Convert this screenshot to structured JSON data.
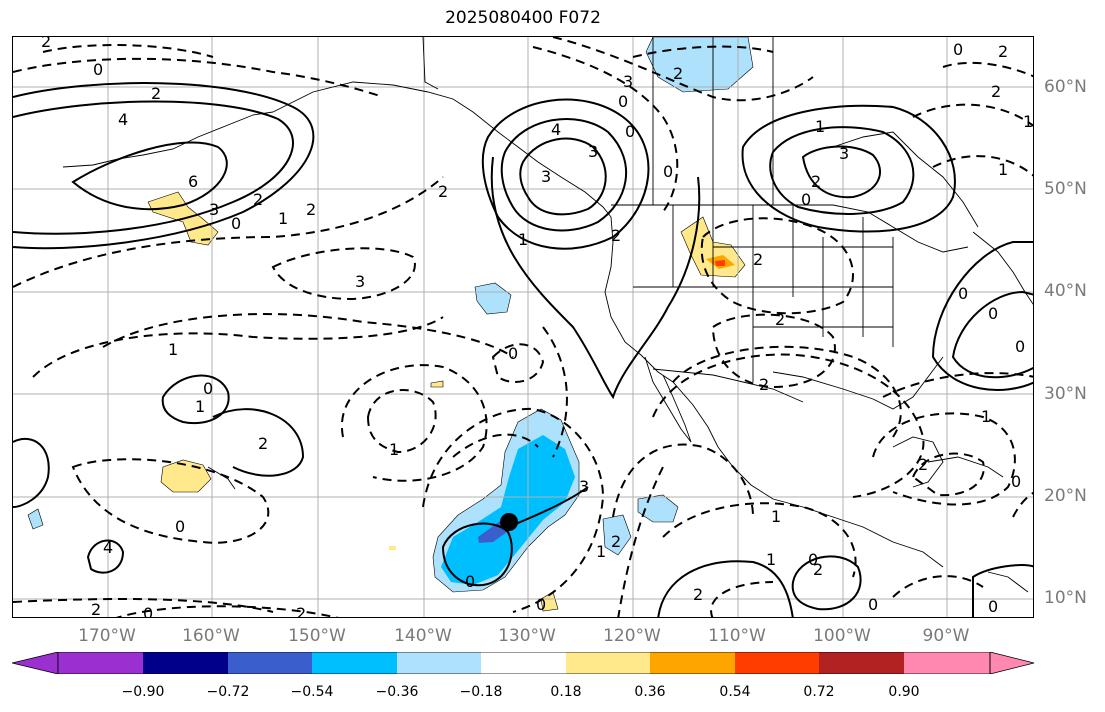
{
  "title": "2025080400 F072",
  "lon_labels": [
    "170°W",
    "160°W",
    "150°W",
    "140°W",
    "130°W",
    "120°W",
    "110°W",
    "100°W",
    "90°W"
  ],
  "lat_labels": [
    "60°N",
    "50°N",
    "40°N",
    "30°N",
    "20°N",
    "10°N"
  ],
  "colorbar": {
    "tick_labels": [
      "−0.90",
      "−0.72",
      "−0.54",
      "−0.36",
      "−0.18",
      "0.18",
      "0.36",
      "0.54",
      "0.72",
      "0.90"
    ],
    "colors": [
      "#9b30d0",
      "#00008b",
      "#3a5fcd",
      "#00bfff",
      "#aee1fb",
      "#ffffff",
      "#ffe98a",
      "#ffa500",
      "#ff3d00",
      "#b22222",
      "#ff88b0"
    ]
  },
  "contour_labels": [
    "2",
    "0",
    "2",
    "4",
    "6",
    "3",
    "0",
    "2",
    "1",
    "2",
    "3",
    "4",
    "2",
    "1",
    "0",
    "3",
    "0",
    "3",
    "2",
    "0",
    "3",
    "2",
    "2",
    "2",
    "2",
    "3",
    "2",
    "0",
    "1",
    "0",
    "2",
    "2",
    "1",
    "1",
    "0",
    "0",
    "0",
    "1",
    "2",
    "0",
    "1",
    "0",
    "1",
    "2",
    "1",
    "0",
    "0",
    "4",
    "2",
    "0",
    "2",
    "0",
    "0",
    "3",
    "2",
    "1",
    "1",
    "1",
    "0",
    "2",
    "2",
    "0",
    "0"
  ],
  "colors": {
    "frame": "#000000",
    "grid": "#b0b0b0",
    "coast": "#000000",
    "axis_labels": "#7a7a7a"
  }
}
